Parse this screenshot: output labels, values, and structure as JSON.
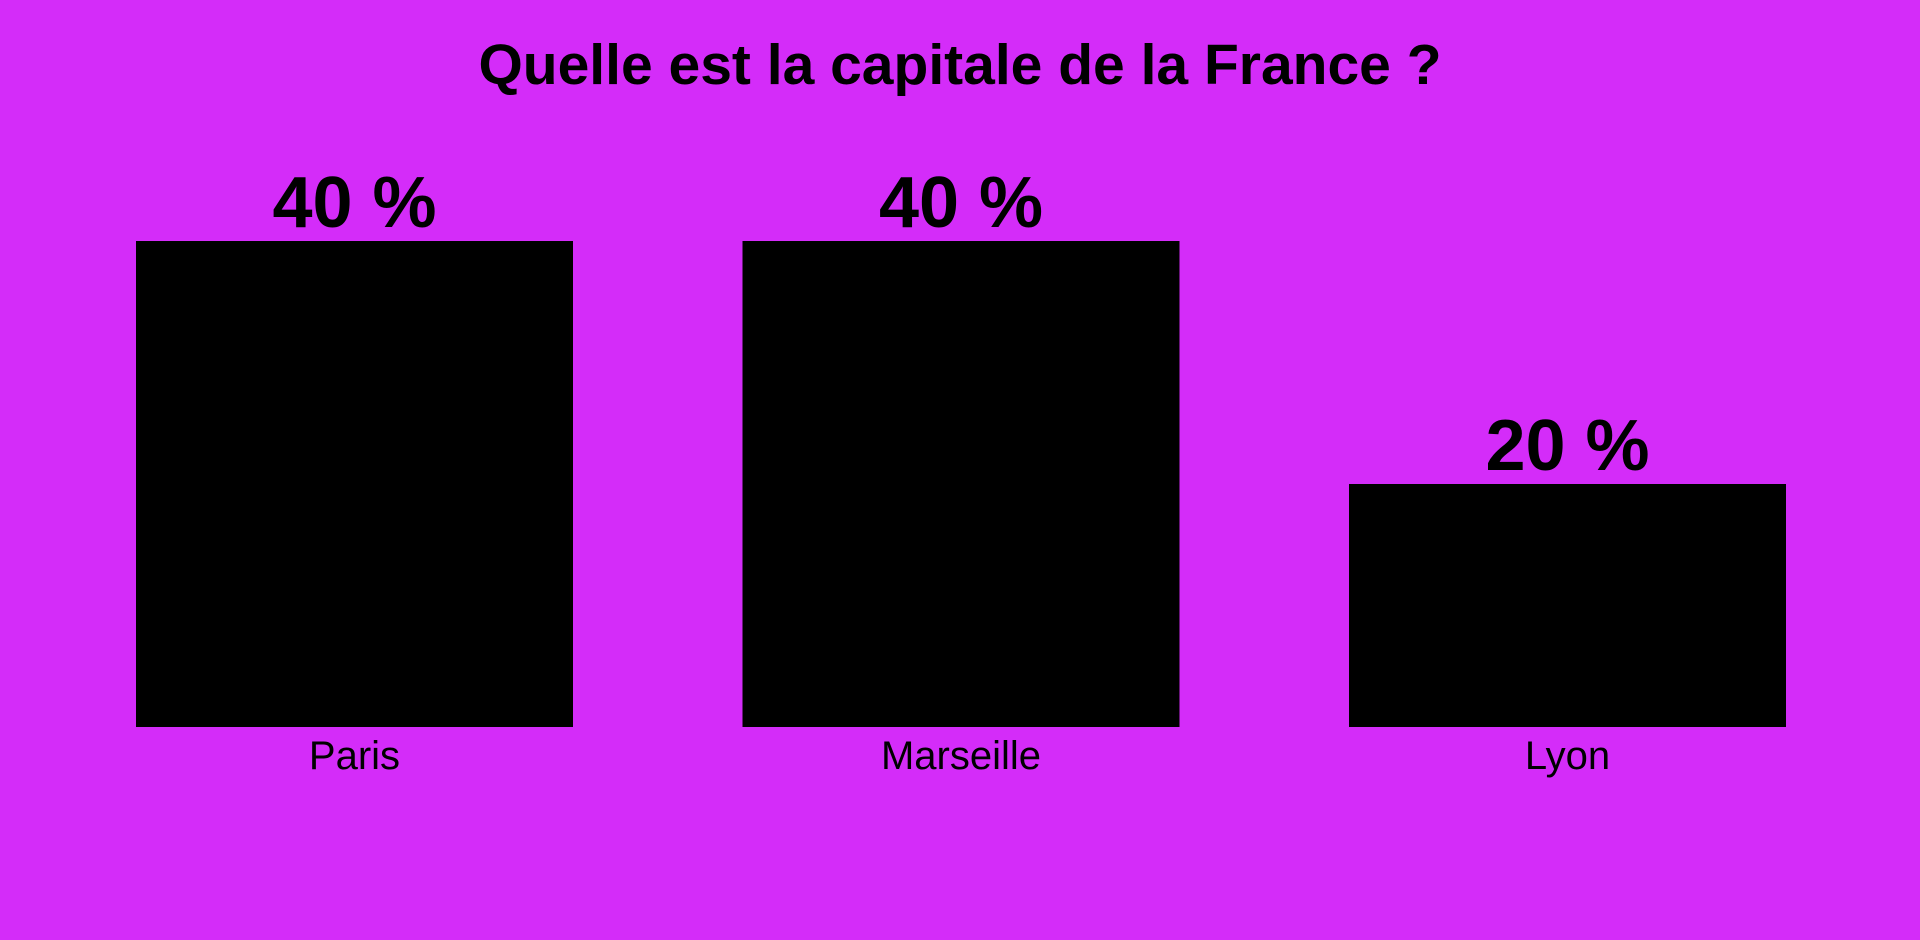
{
  "chart_data": {
    "type": "bar",
    "title": "Quelle est la capitale de la France ?",
    "categories": [
      "Paris",
      "Marseille",
      "Lyon"
    ],
    "values": [
      40,
      40,
      20
    ],
    "value_labels": [
      "40 %",
      "40 %",
      "20 %"
    ],
    "color": "#000000"
  }
}
